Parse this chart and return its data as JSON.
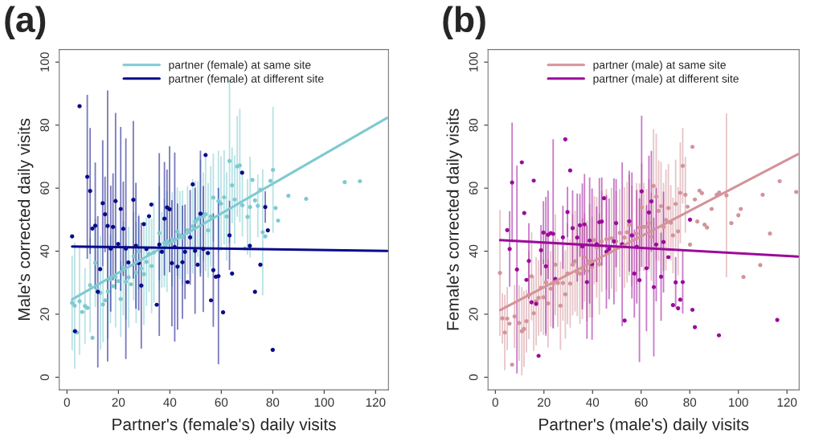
{
  "chart_data": [
    {
      "type": "scatter",
      "title": "(a)",
      "xlabel": "Partner's (female's) daily visits",
      "ylabel": "Male's corrected daily visits",
      "xlim": [
        -3,
        125
      ],
      "ylim": [
        -4,
        104
      ],
      "xticks": [
        0,
        20,
        40,
        60,
        80,
        100,
        120
      ],
      "yticks": [
        0,
        20,
        40,
        60,
        80,
        100
      ],
      "grid": false,
      "legend": "top",
      "series": [
        {
          "marker": "circle",
          "color": "#7ecad0",
          "x": [
            2.0,
            3.0,
            3.9,
            4.9,
            5.9,
            7.0,
            8.0,
            9.0,
            9.9,
            11.0,
            11.8,
            13.0,
            14.0,
            14.9,
            15.9,
            16.9,
            17.9,
            18.9,
            20.0,
            20.9,
            21.9,
            22.9,
            24.0,
            24.9,
            25.9,
            26.9,
            27.9,
            28.9,
            29.9,
            30.9,
            31.9,
            32.9,
            33.8,
            35.9,
            36.9,
            37.9,
            38.9,
            40.9,
            42.9,
            43.9,
            44.9,
            46.9,
            48.9,
            49.9,
            50.9,
            51.9,
            53.0,
            53.9,
            54.9,
            55.9,
            56.9,
            58.9,
            59.9,
            61.1,
            62.1,
            63.2,
            64.2,
            65.2,
            66.2,
            67.2,
            68.2,
            69.2,
            70.2,
            71.2,
            72.1,
            73.1,
            74.2,
            75.2,
            76.1,
            77.1,
            79.1,
            80.1,
            81.1,
            82.1,
            86.1,
            93.0,
            108.0,
            113.9
          ],
          "values": [
            23.6,
            22.7,
            14.2,
            24.1,
            20.7,
            22.6,
            22.0,
            29.2,
            12.5,
            36.3,
            27.7,
            26.8,
            23.1,
            24.4,
            27.2,
            31.1,
            28.9,
            31.8,
            30.5,
            24.8,
            34.6,
            30.3,
            31.7,
            29.5,
            38.4,
            33.2,
            39.9,
            34.5,
            32.7,
            36.6,
            39.1,
            35.3,
            39.6,
            45.7,
            40.4,
            42.6,
            43.1,
            43.7,
            46.2,
            45.1,
            44.3,
            46.7,
            47.9,
            49.3,
            50.2,
            51.0,
            51.0,
            51.7,
            46.6,
            51.0,
            57.0,
            55.9,
            55.1,
            57.1,
            51.0,
            68.6,
            60.9,
            56.4,
            66.9,
            67.2,
            54.6,
            40.9,
            50.9,
            54.0,
            62.6,
            56.1,
            54.4,
            59.5,
            46.0,
            44.7,
            62.3,
            65.8,
            53.7,
            49.7,
            57.6,
            56.6,
            61.9,
            62.2
          ],
          "errors": [
            15,
            20,
            null,
            17,
            null,
            12,
            null,
            15,
            null,
            14,
            null,
            18,
            12,
            null,
            15,
            14,
            null,
            16,
            null,
            12,
            15,
            12,
            16,
            null,
            14,
            16,
            12,
            null,
            16,
            14,
            12,
            15,
            16,
            15,
            12,
            14,
            16,
            15,
            14,
            14,
            15,
            14,
            15,
            13,
            12,
            18,
            14,
            18,
            15,
            16,
            14,
            16,
            15,
            15,
            14,
            26,
            12,
            14,
            16,
            18,
            10,
            null,
            12,
            16,
            null,
            null,
            10,
            null,
            20,
            null,
            null,
            20,
            null,
            null,
            null,
            null,
            null,
            null
          ]
        },
        {
          "marker": "circle",
          "color": "#0a0a8a",
          "x": [
            2.0,
            4.9,
            3.1,
            7.9,
            9.0,
            9.9,
            11.0,
            12.0,
            12.9,
            13.9,
            14.8,
            15.8,
            17.0,
            17.9,
            18.9,
            19.9,
            20.9,
            21.9,
            22.9,
            23.9,
            25.8,
            26.8,
            27.9,
            28.9,
            29.9,
            30.9,
            31.9,
            32.8,
            34.9,
            35.9,
            36.9,
            37.9,
            38.9,
            39.9,
            40.8,
            41.9,
            43.0,
            44.9,
            45.9,
            46.9,
            47.9,
            48.9,
            49.8,
            50.8,
            51.9,
            53.0,
            53.9,
            54.8,
            56.0,
            56.9,
            57.9,
            58.9,
            60.7,
            63.2,
            64.2,
            68.1,
            71.1,
            73.1,
            75.2,
            77.1,
            78.1,
            80.0
          ],
          "values": [
            44.7,
            86.0,
            14.6,
            63.6,
            59.1,
            47.2,
            48.1,
            27.1,
            34.3,
            55.2,
            51.7,
            48.0,
            40.8,
            47.7,
            55.9,
            42.3,
            53.4,
            47.1,
            40.8,
            36.4,
            56.3,
            41.7,
            36.2,
            29.1,
            48.6,
            40.7,
            51.1,
            54.8,
            23.0,
            42.1,
            39.8,
            50.3,
            53.9,
            53.3,
            36.2,
            41.3,
            35.1,
            36.5,
            39.8,
            30.2,
            44.4,
            61.2,
            40.1,
            35.7,
            51.9,
            40.7,
            70.5,
            39.4,
            24.4,
            34.0,
            31.9,
            32.1,
            20.6,
            45.0,
            32.9,
            64.9,
            41.7,
            27.1,
            35.7,
            54.0,
            46.6,
            8.7
          ],
          "errors": [
            null,
            null,
            null,
            26,
            20,
            null,
            20,
            24,
            null,
            20,
            12,
            43,
            20,
            17,
            28,
            null,
            26,
            15,
            35,
            null,
            25,
            20,
            15,
            20,
            null,
            null,
            null,
            null,
            null,
            29,
            null,
            18,
            12,
            20,
            20,
            30,
            20,
            18,
            15,
            null,
            15,
            null,
            20,
            null,
            20,
            20,
            null,
            null,
            null,
            18,
            null,
            28,
            null,
            11,
            null,
            null,
            null,
            null,
            null,
            5,
            null,
            null
          ]
        },
        {
          "type": "line",
          "marker": "none",
          "name": "partner (female) at same site",
          "color": "#7ecad0",
          "x": [
            2,
            124.5
          ],
          "values": [
            24.7,
            82.3
          ]
        },
        {
          "type": "line",
          "marker": "none",
          "name": "partner (female) at different site",
          "color": "#0a0a8a",
          "x": [
            2,
            124.5
          ],
          "values": [
            41.5,
            40.1
          ]
        }
      ]
    },
    {
      "type": "scatter",
      "title": "(b)",
      "xlabel": "Partner's (male's) daily visits",
      "ylabel": "Female's corrected daily visits",
      "xlim": [
        -3,
        125
      ],
      "ylim": [
        -4,
        104
      ],
      "xticks": [
        0,
        20,
        40,
        60,
        80,
        100,
        120
      ],
      "yticks": [
        0,
        20,
        40,
        60,
        80,
        100
      ],
      "grid": false,
      "legend": "top",
      "series": [
        {
          "marker": "circle",
          "color": "#d4939a",
          "x": [
            1.9,
            2.9,
            3.9,
            4.9,
            5.8,
            6.9,
            7.9,
            9.8,
            10.9,
            11.8,
            12.8,
            13.8,
            14.9,
            15.8,
            16.8,
            17.8,
            18.8,
            19.8,
            20.8,
            21.7,
            22.8,
            23.8,
            24.7,
            25.7,
            26.8,
            27.8,
            28.8,
            29.7,
            30.8,
            31.8,
            32.8,
            33.7,
            34.8,
            35.8,
            36.7,
            37.7,
            38.8,
            39.8,
            40.7,
            41.7,
            42.8,
            43.8,
            45.7,
            47.8,
            49.7,
            51.2,
            53.1,
            54.2,
            55.1,
            56.2,
            58.1,
            59.3,
            60.2,
            61.1,
            62.2,
            63.2,
            64.2,
            65.1,
            66.2,
            67.2,
            68.2,
            69.2,
            70.2,
            71.2,
            72.2,
            73.1,
            74.2,
            75.2,
            76.1,
            77.1,
            78.2,
            79.1,
            80.1,
            81.1,
            82.1,
            83.1,
            84.0,
            85.0,
            86.1,
            87.1,
            89.0,
            91.1,
            92.1,
            95.1,
            97.1,
            100.0,
            101.0,
            102.1,
            109.0,
            110.0,
            113.0,
            117.0,
            123.8
          ],
          "values": [
            33.1,
            18.7,
            14.2,
            18.6,
            17.0,
            4.0,
            19.3,
            17.2,
            14.6,
            15.3,
            17.8,
            26.1,
            32.0,
            20.3,
            24.1,
            25.2,
            28.4,
            25.4,
            30.1,
            23.4,
            28.1,
            29.7,
            35.7,
            29.9,
            22.7,
            29.9,
            26.3,
            32.9,
            29.7,
            35.7,
            36.8,
            33.4,
            32.9,
            34.4,
            38.0,
            33.7,
            36.9,
            35.0,
            43.5,
            41.2,
            35.9,
            43.1,
            43.8,
            44.1,
            43.1,
            45.8,
            44.3,
            46.0,
            48.3,
            44.8,
            45.6,
            47.5,
            53.9,
            47.7,
            47.7,
            48.9,
            44.6,
            60.7,
            57.3,
            52.8,
            54.3,
            47.7,
            49.9,
            53.7,
            49.0,
            45.0,
            55.0,
            46.3,
            58.5,
            67.1,
            57.9,
            54.1,
            42.1,
            73.1,
            56.4,
            49.4,
            59.2,
            58.4,
            48.4,
            47.5,
            53.4,
            57.9,
            58.6,
            57.7,
            48.9,
            51.4,
            53.4,
            31.8,
            35.6,
            57.9,
            45.6,
            62.2,
            58.8
          ],
          "errors": [
            20,
            8,
            12,
            10,
            null,
            null,
            10,
            12,
            14,
            12,
            10,
            14,
            14,
            12,
            14,
            12,
            14,
            12,
            16,
            14,
            12,
            14,
            16,
            14,
            14,
            12,
            14,
            16,
            14,
            16,
            16,
            14,
            16,
            16,
            14,
            16,
            18,
            16,
            14,
            16,
            16,
            16,
            16,
            16,
            16,
            14,
            16,
            16,
            16,
            16,
            16,
            14,
            14,
            14,
            12,
            14,
            14,
            18,
            20,
            16,
            14,
            14,
            16,
            14,
            12,
            12,
            14,
            14,
            16,
            12,
            12,
            null,
            null,
            null,
            null,
            null,
            null,
            null,
            null,
            null,
            null,
            null,
            null,
            26,
            null,
            null,
            null,
            null,
            null,
            null,
            null,
            null,
            null
          ]
        },
        {
          "marker": "circle",
          "color": "#9b0b9b",
          "x": [
            4.9,
            5.9,
            6.9,
            8.9,
            10.9,
            11.9,
            12.8,
            13.8,
            14.9,
            15.8,
            16.8,
            17.8,
            18.8,
            19.8,
            20.8,
            21.7,
            22.8,
            23.8,
            24.7,
            27.8,
            28.8,
            29.7,
            30.8,
            31.8,
            33.7,
            34.8,
            35.8,
            36.7,
            37.7,
            38.8,
            39.8,
            41.7,
            42.8,
            43.8,
            44.7,
            45.7,
            46.8,
            48.8,
            49.7,
            52.2,
            53.2,
            55.1,
            56.2,
            57.2,
            58.2,
            59.3,
            60.2,
            62.2,
            63.2,
            64.2,
            65.2,
            66.2,
            68.2,
            69.2,
            71.2,
            73.1,
            74.2,
            75.2,
            76.1,
            77.1,
            80.1,
            81.1,
            82.1,
            92.0,
            116.0
          ],
          "values": [
            46.7,
            40.7,
            61.8,
            34.2,
            68.2,
            52.1,
            30.9,
            36.9,
            23.8,
            62.4,
            23.3,
            6.8,
            40.3,
            45.9,
            35.2,
            45.2,
            45.7,
            45.5,
            31.2,
            44.4,
            75.5,
            52.4,
            65.6,
            47.3,
            44.3,
            48.2,
            41.5,
            48.5,
            30.2,
            43.4,
            35.9,
            42.2,
            49.2,
            49.4,
            56.8,
            39.8,
            40.7,
            43.1,
            48.9,
            42.2,
            18.0,
            49.5,
            45.0,
            32.9,
            41.4,
            30.8,
            59.0,
            34.6,
            52.3,
            55.8,
            28.6,
            42.1,
            31.9,
            42.9,
            38.1,
            22.9,
            30.1,
            21.9,
            24.6,
            30.2,
            50.0,
            21.4,
            15.9,
            13.3,
            18.2
          ],
          "errors": [
            null,
            12,
            19,
            33,
            null,
            null,
            null,
            12,
            null,
            null,
            null,
            null,
            8,
            10,
            22,
            14,
            null,
            30,
            null,
            10,
            null,
            8,
            null,
            12,
            14,
            10,
            20,
            16,
            18,
            20,
            24,
            12,
            14,
            14,
            null,
            18,
            16,
            20,
            14,
            26,
            null,
            16,
            20,
            14,
            18,
            26,
            24,
            20,
            18,
            16,
            22,
            18,
            14,
            16,
            null,
            null,
            8,
            null,
            null,
            10,
            null,
            null,
            null,
            null,
            null
          ]
        },
        {
          "type": "line",
          "marker": "none",
          "name": "partner (male) at same site",
          "color": "#d4939a",
          "x": [
            2,
            124.5
          ],
          "values": [
            21.3,
            70.8
          ]
        },
        {
          "type": "line",
          "marker": "none",
          "name": "partner (male) at different site",
          "color": "#9b0b9b",
          "x": [
            2,
            124.5
          ],
          "values": [
            43.5,
            38.3
          ]
        }
      ]
    }
  ]
}
